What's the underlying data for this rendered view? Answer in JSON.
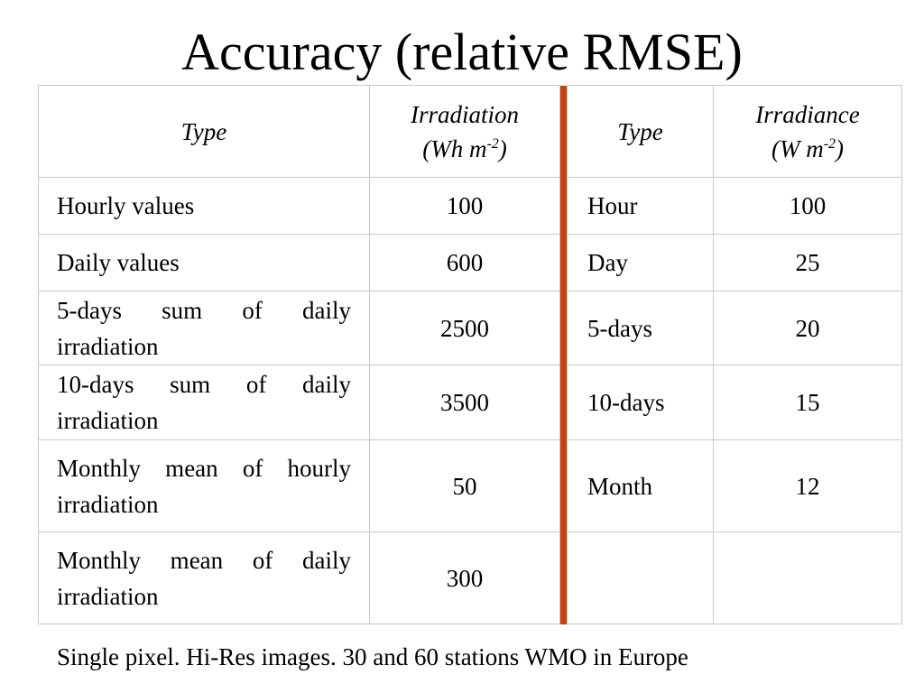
{
  "title": "Accuracy (relative RMSE)",
  "table": {
    "header": {
      "type_left": "Type",
      "irradiation_label": "Irradiation",
      "irradiation_unit_pre": "(Wh m",
      "irradiation_unit_exp": "-2",
      "irradiation_unit_post": ")",
      "type_right": "Type",
      "irradiance_label": "Irradiance",
      "irradiance_unit_pre": "(W m",
      "irradiance_unit_exp": "-2",
      "irradiance_unit_post": ")"
    },
    "rows": [
      {
        "type_left": "Hourly values",
        "irradiation": "100",
        "type_right": "Hour",
        "irradiance": "100"
      },
      {
        "type_left": "Daily values",
        "irradiation": "600",
        "type_right": "Day",
        "irradiance": "25"
      },
      {
        "type_left": "5-days sum of daily irradiation",
        "irradiation": "2500",
        "type_right": "5-days",
        "irradiance": "20"
      },
      {
        "type_left": "10-days sum of daily irradiation",
        "irradiation": "3500",
        "type_right": "10-days",
        "irradiance": "15"
      },
      {
        "type_left": "Monthly mean of hourly irradiation",
        "irradiation": "50",
        "type_right": "Month",
        "irradiance": "12"
      },
      {
        "type_left": "Monthly mean of daily irradiation",
        "irradiation": "300",
        "type_right": "",
        "irradiance": ""
      }
    ]
  },
  "footnote": "Single pixel. Hi-Res images. 30 and 60 stations WMO in Europe",
  "colors": {
    "separator": "#c8410e",
    "grid": "#c8c8c8"
  }
}
